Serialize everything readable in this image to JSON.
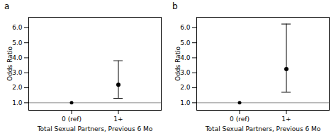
{
  "chart_data": [
    {
      "type": "errorbar",
      "title": "a",
      "categories": [
        "0 (ref)",
        "1+"
      ],
      "values": [
        1.0,
        2.2
      ],
      "ci_low": [
        null,
        1.3
      ],
      "ci_high": [
        null,
        3.8
      ],
      "ref_line": 1.0,
      "xlabel": "Total Sexual Partners, Previous 6 Mo",
      "ylabel": "Odds Ratio",
      "ylim": [
        0.5,
        6.7
      ],
      "yticks": [
        1,
        2,
        3,
        4,
        5,
        6
      ]
    },
    {
      "type": "errorbar",
      "title": "b",
      "categories": [
        "0 (ref)",
        "1+"
      ],
      "values": [
        1.0,
        3.25
      ],
      "ci_low": [
        null,
        1.7
      ],
      "ci_high": [
        null,
        6.25
      ],
      "ref_line": 1.0,
      "xlabel": "Total Sexual Partners, Previous 6 Mo",
      "ylabel": "Odds Ratio",
      "ylim": [
        0.5,
        6.7
      ],
      "yticks": [
        1,
        2,
        3,
        4,
        5,
        6
      ]
    }
  ]
}
